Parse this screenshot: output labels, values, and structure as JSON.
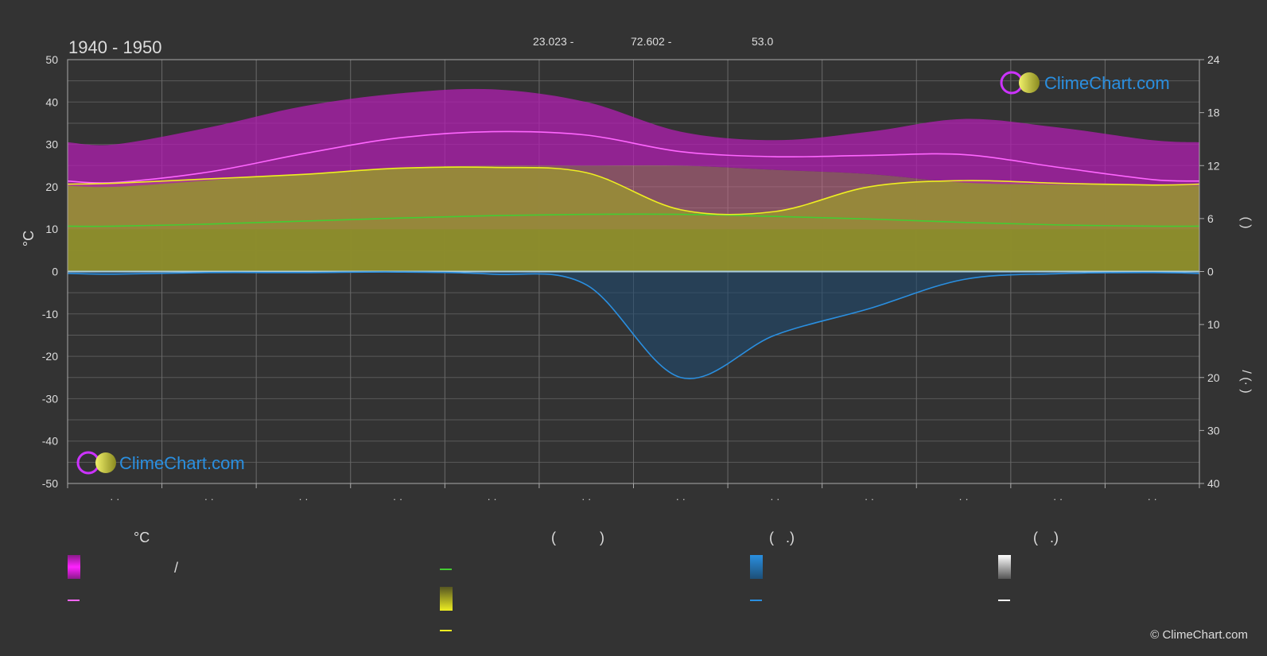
{
  "chart_data": {
    "type": "area",
    "title": "1940 - 1950",
    "header_values": [
      "23.023 -",
      "72.602 -",
      "53.0"
    ],
    "left_axis": {
      "label": "°C",
      "range": [
        -50,
        50
      ],
      "ticks": [
        "50",
        "40",
        "30",
        "20",
        "10",
        "0",
        "-10",
        "-20",
        "-30",
        "-40",
        "-50"
      ]
    },
    "right_axis_top": {
      "ticks": [
        "24",
        "18",
        "12",
        "6",
        "0"
      ],
      "label": "(     )",
      "range": [
        0,
        24
      ]
    },
    "right_axis_bottom": {
      "ticks": [
        "0",
        "10",
        "20",
        "30",
        "40"
      ],
      "label": "/   (·   )",
      "range": [
        0,
        40
      ]
    },
    "x_tick_labels": [
      "· ·",
      "· ·",
      "· ·",
      "· ·",
      "· ·",
      "· ·",
      "· ·",
      "· ·",
      "· ·",
      "· ·",
      "· ·",
      "· ·"
    ],
    "months": [
      1,
      2,
      3,
      4,
      5,
      6,
      7,
      8,
      9,
      10,
      11,
      12
    ],
    "series": [
      {
        "name": "",
        "key": "max_temp_mean",
        "color": "#ff66ff",
        "values": [
          21.0,
          23.5,
          27.8,
          31.5,
          33.0,
          32.2,
          28.3,
          27.1,
          27.4,
          27.6,
          24.6,
          21.7
        ]
      },
      {
        "name": "",
        "key": "daylight_hours",
        "color": "#44cc33",
        "values": [
          10.7,
          11.2,
          11.9,
          12.6,
          13.2,
          13.5,
          13.5,
          13.0,
          12.4,
          11.6,
          11.0,
          10.7
        ]
      },
      {
        "name": "",
        "key": "sunshine_hours",
        "color": "#eeee22",
        "values": [
          10.0,
          10.5,
          11.0,
          11.7,
          11.8,
          11.2,
          7.0,
          6.8,
          9.6,
          10.3,
          10.0,
          9.8
        ]
      },
      {
        "name": "",
        "key": "rainfall_mean_mm",
        "color": "#2a8fe0",
        "values": [
          0.5,
          0.2,
          0.2,
          0.1,
          0.5,
          2.5,
          20.0,
          12.0,
          7.0,
          1.5,
          0.4,
          0.2
        ]
      }
    ],
    "max_temp_band_top": [
      30,
      34,
      39,
      42,
      43,
      40,
      33,
      31,
      33,
      36,
      34,
      31
    ],
    "min_temp_band": [
      20,
      21.5,
      23,
      24.5,
      25,
      25,
      25,
      24,
      23,
      21,
      20.5,
      20.5
    ]
  },
  "logo": {
    "text": "ClimeChart.com",
    "colors": {
      "ring": "#cc33ff",
      "sun": "#e6e65c",
      "text": "#2a8fe0"
    }
  },
  "legend": {
    "headers": [
      "°C",
      "(           )",
      "(   .)",
      "(   .)"
    ],
    "slash_text": "/",
    "swatch_colors": {
      "temp_range": "#e020e0",
      "max_temp_line": "#ff66ff",
      "daylight_line": "#44cc33",
      "sunshine_grad": "#eeee22",
      "sunshine_line": "#eeee22",
      "rain_grad": "#2a8fe0",
      "rain_line": "#2a8fe0",
      "snow_grad": "#ffffff",
      "snow_line": "#ffffff"
    }
  },
  "copyright": "© ClimeChart.com"
}
